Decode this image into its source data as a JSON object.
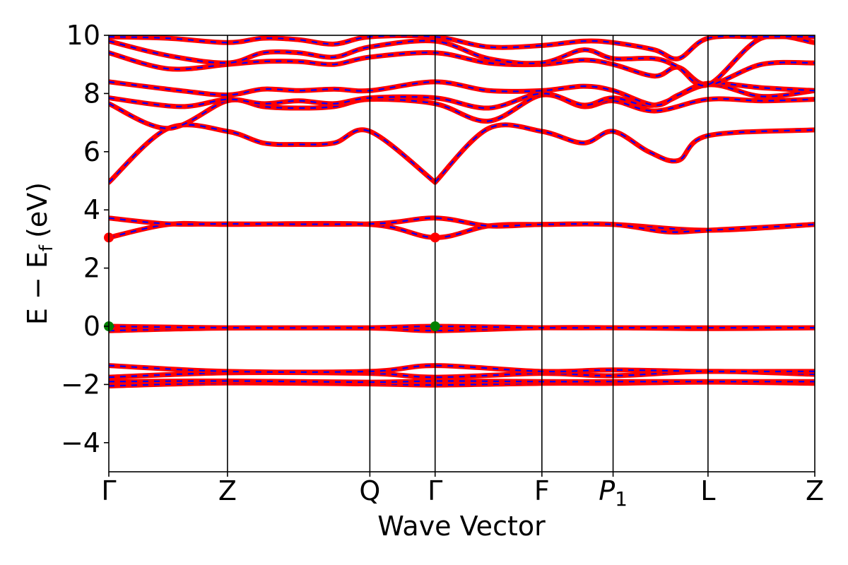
{
  "chart_data": {
    "type": "line",
    "xlabel": "Wave Vector",
    "ylabel": "E − E",
    "ylabel_sub": "f",
    "ylabel_unit": "(eV)",
    "ylim": [
      -5,
      10
    ],
    "yticks": [
      "−4",
      "−2",
      "0",
      "2",
      "4",
      "6",
      "8",
      "10"
    ],
    "ytick_values": [
      -4,
      -2,
      0,
      2,
      4,
      6,
      8,
      10
    ],
    "grid": false,
    "kpoints": [
      {
        "label": "Γ",
        "x": 0.0
      },
      {
        "label": "Z",
        "x": 1.0
      },
      {
        "label": "Q",
        "x": 2.2
      },
      {
        "label": "Γ",
        "x": 2.75
      },
      {
        "label": "F",
        "x": 3.65
      },
      {
        "label": "P",
        "sub": "1",
        "x": 4.25
      },
      {
        "label": "L",
        "x": 5.05
      },
      {
        "label": "Z",
        "x": 5.95
      }
    ],
    "colors": {
      "line_primary": "#ff0000",
      "line_secondary": "#0000ff",
      "cbm_marker": "#ff0000",
      "vbm_marker": "#008000"
    },
    "markers": [
      {
        "type": "cbm",
        "x": 0.0,
        "y": 3.05
      },
      {
        "type": "cbm",
        "x": 2.75,
        "y": 3.05
      },
      {
        "type": "vbm",
        "x": 0.0,
        "y": 0.0
      },
      {
        "type": "vbm",
        "x": 2.75,
        "y": 0.0
      }
    ],
    "bands": [
      {
        "x": [
          0.0,
          1.0,
          2.2,
          2.75,
          3.65,
          4.25,
          5.05,
          5.95
        ],
        "y": [
          -2.05,
          -1.95,
          -1.98,
          -2.02,
          -1.96,
          -1.96,
          -1.92,
          -1.96
        ]
      },
      {
        "x": [
          0.0,
          1.0,
          2.2,
          2.75,
          3.65,
          4.25,
          5.05,
          5.95
        ],
        "y": [
          -1.9,
          -1.88,
          -1.92,
          -1.88,
          -1.9,
          -1.9,
          -1.9,
          -1.9
        ]
      },
      {
        "x": [
          0.0,
          1.0,
          2.2,
          2.75,
          3.65,
          4.25,
          5.05,
          5.95
        ],
        "y": [
          -1.75,
          -1.6,
          -1.62,
          -1.75,
          -1.62,
          -1.7,
          -1.55,
          -1.65
        ]
      },
      {
        "x": [
          0.0,
          1.0,
          2.2,
          2.75,
          3.65,
          4.25,
          5.05,
          5.95
        ],
        "y": [
          -1.35,
          -1.55,
          -1.55,
          -1.35,
          -1.55,
          -1.5,
          -1.55,
          -1.55
        ]
      },
      {
        "x": [
          0.0,
          1.0,
          2.2,
          2.75,
          3.65,
          4.25,
          5.05,
          5.95
        ],
        "y": [
          -0.15,
          -0.06,
          -0.06,
          -0.15,
          -0.05,
          -0.05,
          -0.08,
          -0.05
        ]
      },
      {
        "x": [
          0.0,
          1.0,
          2.2,
          2.75,
          3.65,
          4.25,
          5.05,
          5.95
        ],
        "y": [
          0.0,
          -0.05,
          -0.05,
          0.0,
          -0.05,
          -0.05,
          -0.05,
          -0.05
        ]
      },
      {
        "x": [
          0.0,
          0.5,
          1.0,
          2.2,
          2.75,
          3.2,
          3.65,
          4.25,
          5.05,
          5.95
        ],
        "y": [
          3.05,
          3.5,
          3.5,
          3.5,
          3.05,
          3.45,
          3.5,
          3.5,
          3.3,
          3.5
        ]
      },
      {
        "x": [
          0.0,
          0.5,
          1.0,
          2.2,
          2.75,
          3.2,
          3.65,
          4.25,
          4.7,
          5.05,
          5.95
        ],
        "y": [
          3.72,
          3.52,
          3.52,
          3.52,
          3.72,
          3.45,
          3.5,
          3.5,
          3.25,
          3.3,
          3.5
        ]
      },
      {
        "x": [
          0.0,
          0.5,
          1.0,
          1.3,
          1.6,
          1.9,
          2.2,
          2.75
        ],
        "y": [
          4.95,
          6.8,
          6.7,
          6.3,
          6.25,
          6.3,
          6.7,
          4.95
        ]
      },
      {
        "x": [
          2.75,
          3.2,
          3.65,
          4.0,
          4.25,
          4.55,
          4.8,
          5.05,
          5.95
        ],
        "y": [
          4.95,
          6.8,
          6.7,
          6.3,
          6.7,
          6.0,
          5.7,
          6.55,
          6.75
        ]
      },
      {
        "x": [
          0.0,
          0.5,
          1.0,
          1.3,
          1.6,
          1.9,
          2.2,
          2.75,
          3.2,
          3.65,
          4.0,
          4.25,
          4.6,
          5.05,
          5.5,
          5.95
        ],
        "y": [
          7.65,
          6.8,
          7.75,
          7.55,
          7.5,
          7.55,
          7.8,
          7.65,
          7.05,
          7.95,
          7.55,
          7.75,
          7.4,
          7.8,
          7.75,
          7.8
        ]
      },
      {
        "x": [
          0.0,
          0.6,
          1.0,
          1.3,
          1.6,
          1.9,
          2.2,
          2.75,
          3.2,
          3.65,
          4.0,
          4.25,
          4.6,
          5.05,
          5.5,
          5.95
        ],
        "y": [
          7.85,
          7.55,
          7.8,
          7.65,
          7.75,
          7.65,
          7.85,
          7.85,
          7.5,
          8.0,
          7.6,
          7.85,
          7.6,
          8.3,
          7.9,
          8.1
        ]
      },
      {
        "x": [
          0.0,
          0.6,
          1.0,
          1.3,
          1.6,
          1.9,
          2.2,
          2.75,
          3.2,
          3.65,
          4.0,
          4.25,
          4.6,
          4.8,
          5.05,
          5.5,
          5.95
        ],
        "y": [
          8.4,
          8.1,
          7.95,
          8.15,
          8.1,
          8.15,
          8.1,
          8.4,
          8.1,
          8.1,
          8.25,
          8.1,
          7.6,
          7.95,
          8.35,
          8.2,
          8.1
        ]
      },
      {
        "x": [
          0.0,
          0.5,
          1.0,
          1.3,
          1.6,
          1.9,
          2.2,
          2.75,
          3.2,
          3.65,
          4.0,
          4.25,
          4.6,
          4.8,
          5.05,
          5.5,
          5.95
        ],
        "y": [
          9.4,
          8.85,
          9.0,
          9.1,
          9.1,
          9.0,
          9.25,
          9.4,
          9.05,
          9.0,
          9.15,
          9.0,
          8.6,
          8.9,
          8.3,
          9.0,
          9.05
        ]
      },
      {
        "x": [
          0.0,
          0.5,
          1.0,
          1.3,
          1.6,
          1.9,
          2.2,
          2.75,
          3.2,
          3.65,
          4.0,
          4.25,
          4.6,
          4.8,
          5.05,
          5.5,
          5.95
        ],
        "y": [
          9.8,
          9.3,
          9.05,
          9.4,
          9.4,
          9.25,
          9.6,
          9.8,
          9.2,
          9.05,
          9.5,
          9.2,
          9.2,
          8.9,
          8.3,
          9.9,
          9.75
        ]
      },
      {
        "x": [
          0.0,
          0.5,
          1.0,
          1.3,
          1.6,
          1.9,
          2.2,
          2.75,
          3.2,
          3.65,
          4.0,
          4.25,
          4.6,
          4.8,
          5.05,
          5.5,
          5.95
        ],
        "y": [
          9.95,
          9.9,
          9.75,
          9.9,
          9.85,
          9.7,
          9.95,
          9.95,
          9.6,
          9.65,
          9.8,
          9.75,
          9.5,
          9.2,
          9.9,
          9.95,
          9.95
        ]
      }
    ]
  }
}
